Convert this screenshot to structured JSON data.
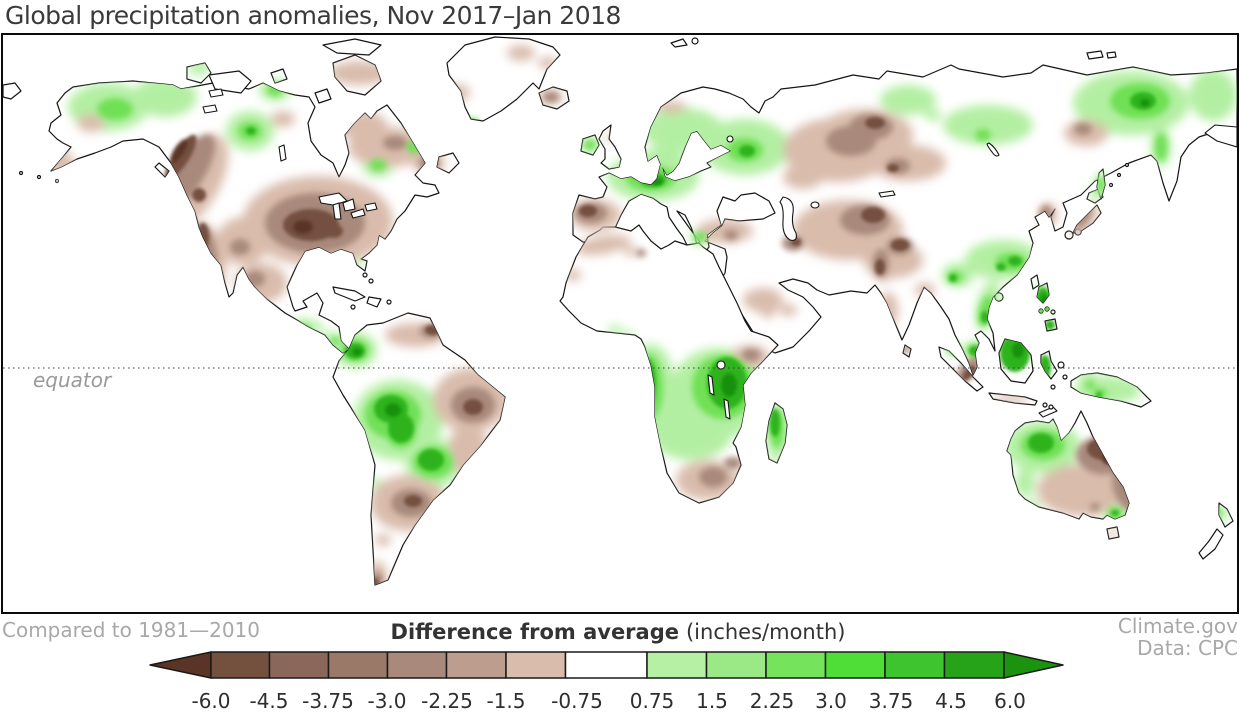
{
  "title": "Global precipitation anomalies, Nov 2017–Jan 2018",
  "map": {
    "equator_label": "equator"
  },
  "legend": {
    "title_bold": "Difference from average",
    "title_units": "(inches/month)",
    "tick_labels": [
      "-6.0",
      "-4.5",
      "-3.75",
      "-3.0",
      "-2.25",
      "-1.5",
      "-0.75",
      "0.75",
      "1.5",
      "2.25",
      "3.0",
      "3.75",
      "4.5",
      "6.0"
    ],
    "baseline_note": "Compared to 1981—2010",
    "credit_line1": "Climate.gov",
    "credit_line2": "Data: CPC",
    "colors": {
      "dry_scale": [
        "#5A3425",
        "#74503F",
        "#8A675A",
        "#9B7969",
        "#A8897B",
        "#BD9D8E",
        "#D9BCAC"
      ],
      "neutral": "#FFFFFF",
      "wet_scale": [
        "#B5F0A5",
        "#9BE887",
        "#76E35C",
        "#4FDE37",
        "#3EC42C",
        "#27A31A",
        "#1B930E"
      ]
    }
  },
  "chart_data": {
    "type": "heatmap",
    "title": "Global precipitation anomalies, Nov 2017–Jan 2018",
    "variable": "Precipitation difference from average",
    "units": "inches/month",
    "baseline_period": "1981–2010",
    "data_source": "CPC",
    "publisher": "Climate.gov",
    "colorbar": {
      "tick_values": [
        -6.0,
        -4.5,
        -3.75,
        -3.0,
        -2.25,
        -1.5,
        -0.75,
        0.75,
        1.5,
        2.25,
        3.0,
        3.75,
        4.5,
        6.0
      ],
      "open_ended_low": true,
      "open_ended_high": true,
      "dry_color_hex": [
        "#5A3425",
        "#74503F",
        "#8A675A",
        "#9B7969",
        "#A8897B",
        "#BD9D8E",
        "#D9BCAC"
      ],
      "neutral_hex": "#FFFFFF",
      "wet_color_hex": [
        "#B5F0A5",
        "#9BE887",
        "#76E35C",
        "#4FDE37",
        "#3EC42C",
        "#27A31A",
        "#1B930E"
      ]
    },
    "notable_regions": [
      {
        "region": "Southern and eastern United States",
        "anomaly": "dry",
        "approx_value": "-3 to -6 in/month"
      },
      {
        "region": "U.S. West Coast and coastal British Columbia",
        "anomaly": "dry",
        "approx_value": "-3 to -6 in/month"
      },
      {
        "region": "Alaska and northwestern Canada",
        "anomaly": "wet",
        "approx_value": "+0.75 to +2.25 in/month"
      },
      {
        "region": "Western Amazon (Peru/Bolivia) and central Brazil",
        "anomaly": "wet",
        "approx_value": "+3 to +6 in/month"
      },
      {
        "region": "Eastern Brazil, Paraguay and northern Argentina",
        "anomaly": "dry",
        "approx_value": "-1.5 to -4.5 in/month"
      },
      {
        "region": "Iberian Peninsula and northwest Africa",
        "anomaly": "dry",
        "approx_value": "-1.5 to -4.5 in/month"
      },
      {
        "region": "Central Europe, Alps and northwest Russia",
        "anomaly": "wet",
        "approx_value": "+0.75 to +3.75 in/month"
      },
      {
        "region": "Western Russia and central Asia",
        "anomaly": "dry",
        "approx_value": "-0.75 to -3 in/month"
      },
      {
        "region": "Angola, Tanzania, East Africa and Madagascar",
        "anomaly": "wet",
        "approx_value": "+3 to +6 in/month"
      },
      {
        "region": "Southeast China, Philippines, Borneo",
        "anomaly": "wet",
        "approx_value": "+1.5 to +6 in/month"
      },
      {
        "region": "Northeastern Siberia",
        "anomaly": "wet",
        "approx_value": "+0.75 to +3 in/month"
      },
      {
        "region": "Eastern Australia (Queensland/NSW)",
        "anomaly": "dry",
        "approx_value": "-3 to -6 in/month"
      },
      {
        "region": "Northwestern Australia",
        "anomaly": "wet",
        "approx_value": "+3 to +6 in/month"
      }
    ]
  }
}
